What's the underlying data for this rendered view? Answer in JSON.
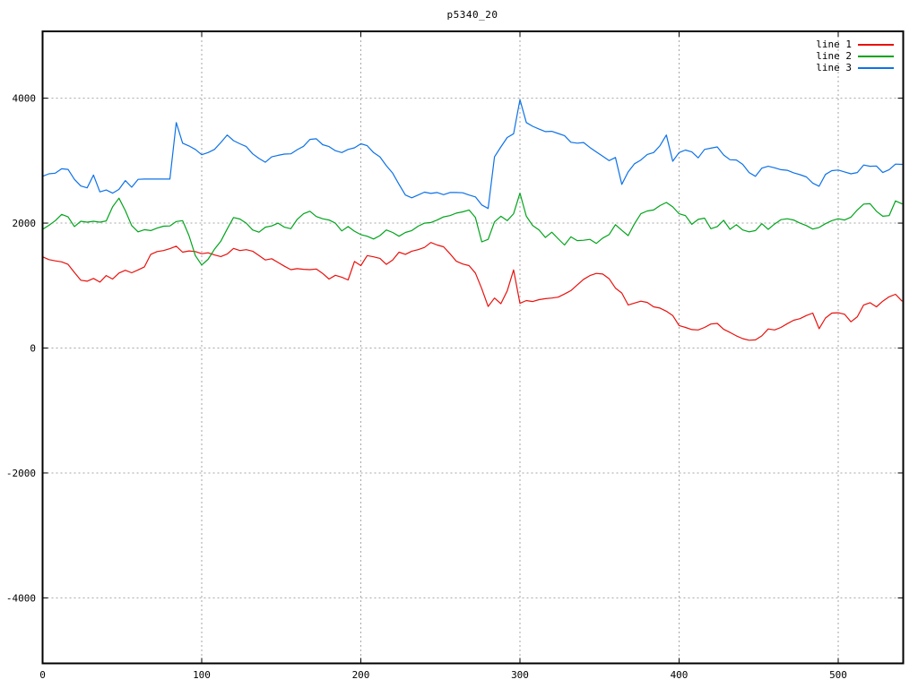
{
  "title": "p5340_20",
  "legend": {
    "position": "top-right",
    "items": [
      {
        "label": "line 1",
        "color": "#e8110d"
      },
      {
        "label": "line 2",
        "color": "#00a41b"
      },
      {
        "label": "line 3",
        "color": "#0d72e8"
      }
    ]
  },
  "axes": {
    "x": {
      "ticks": [
        0,
        100,
        200,
        300,
        400,
        500
      ],
      "range": [
        0,
        541
      ]
    },
    "y": {
      "ticks": [
        -4000,
        -2000,
        0,
        2000,
        4000
      ],
      "range": [
        -5050,
        5060
      ]
    },
    "grid": "dashed-gray"
  },
  "chart_data": {
    "type": "line",
    "title": "p5340_20",
    "xlabel": "",
    "ylabel": "",
    "x_start": 0,
    "x_step": 4,
    "xlim": [
      0,
      541
    ],
    "ylim": [
      -5050,
      5060
    ],
    "series": [
      {
        "name": "line 1",
        "color": "#e8110d",
        "values": [
          1460,
          1415,
          1395,
          1380,
          1340,
          1210,
          1085,
          1070,
          1115,
          1055,
          1160,
          1105,
          1200,
          1245,
          1205,
          1250,
          1300,
          1500,
          1545,
          1560,
          1590,
          1630,
          1535,
          1555,
          1545,
          1510,
          1525,
          1490,
          1465,
          1505,
          1595,
          1560,
          1575,
          1550,
          1480,
          1410,
          1430,
          1370,
          1310,
          1255,
          1270,
          1260,
          1255,
          1265,
          1195,
          1105,
          1165,
          1135,
          1090,
          1385,
          1320,
          1480,
          1460,
          1435,
          1340,
          1410,
          1535,
          1500,
          1550,
          1575,
          1610,
          1690,
          1650,
          1620,
          1510,
          1390,
          1345,
          1320,
          1200,
          950,
          665,
          800,
          710,
          915,
          1250,
          715,
          760,
          745,
          775,
          790,
          800,
          815,
          865,
          920,
          1010,
          1100,
          1160,
          1195,
          1185,
          1110,
          960,
          880,
          690,
          720,
          750,
          730,
          660,
          640,
          590,
          520,
          360,
          330,
          295,
          290,
          330,
          385,
          395,
          300,
          250,
          195,
          150,
          125,
          130,
          195,
          305,
          290,
          330,
          390,
          445,
          470,
          520,
          560,
          310,
          480,
          560,
          565,
          540,
          420,
          500,
          690,
          725,
          660,
          750,
          820,
          860,
          755
        ]
      },
      {
        "name": "line 2",
        "color": "#00a41b",
        "values": [
          1900,
          1965,
          2040,
          2140,
          2100,
          1945,
          2030,
          2015,
          2030,
          2015,
          2035,
          2260,
          2400,
          2200,
          1960,
          1860,
          1895,
          1880,
          1920,
          1950,
          1955,
          2025,
          2040,
          1800,
          1480,
          1330,
          1420,
          1580,
          1710,
          1905,
          2090,
          2065,
          2000,
          1890,
          1855,
          1935,
          1955,
          2000,
          1935,
          1910,
          2060,
          2150,
          2190,
          2105,
          2070,
          2050,
          2000,
          1875,
          1945,
          1870,
          1815,
          1790,
          1745,
          1800,
          1890,
          1850,
          1790,
          1850,
          1880,
          1950,
          2000,
          2010,
          2050,
          2100,
          2120,
          2160,
          2180,
          2210,
          2090,
          1700,
          1740,
          2020,
          2110,
          2040,
          2150,
          2480,
          2110,
          1960,
          1890,
          1770,
          1855,
          1750,
          1650,
          1780,
          1720,
          1725,
          1740,
          1675,
          1760,
          1815,
          1975,
          1885,
          1800,
          1990,
          2150,
          2195,
          2210,
          2280,
          2330,
          2260,
          2150,
          2120,
          1980,
          2060,
          2080,
          1910,
          1945,
          2045,
          1900,
          1975,
          1890,
          1860,
          1880,
          1990,
          1900,
          1985,
          2055,
          2070,
          2050,
          2000,
          1960,
          1905,
          1930,
          1990,
          2040,
          2070,
          2050,
          2095,
          2210,
          2305,
          2310,
          2190,
          2110,
          2120,
          2355,
          2310
        ]
      },
      {
        "name": "line 3",
        "color": "#0d72e8",
        "values": [
          2750,
          2790,
          2800,
          2870,
          2860,
          2700,
          2595,
          2565,
          2770,
          2500,
          2530,
          2480,
          2540,
          2680,
          2575,
          2700,
          2705,
          2705,
          2705,
          2705,
          2705,
          3610,
          3280,
          3235,
          3180,
          3095,
          3130,
          3180,
          3290,
          3410,
          3320,
          3270,
          3225,
          3110,
          3035,
          2975,
          3060,
          3085,
          3105,
          3110,
          3175,
          3230,
          3340,
          3350,
          3255,
          3225,
          3160,
          3130,
          3180,
          3205,
          3270,
          3240,
          3130,
          3060,
          2920,
          2800,
          2620,
          2450,
          2405,
          2450,
          2495,
          2475,
          2490,
          2455,
          2490,
          2490,
          2485,
          2450,
          2420,
          2290,
          2235,
          3060,
          3220,
          3370,
          3430,
          3975,
          3610,
          3550,
          3505,
          3465,
          3470,
          3435,
          3400,
          3295,
          3280,
          3290,
          3210,
          3140,
          3070,
          3000,
          3050,
          2620,
          2820,
          2950,
          3010,
          3100,
          3130,
          3240,
          3410,
          2990,
          3130,
          3170,
          3140,
          3045,
          3180,
          3200,
          3220,
          3090,
          3015,
          3010,
          2940,
          2810,
          2750,
          2880,
          2910,
          2885,
          2855,
          2845,
          2805,
          2775,
          2740,
          2640,
          2590,
          2780,
          2840,
          2850,
          2820,
          2790,
          2810,
          2930,
          2910,
          2915,
          2810,
          2855,
          2945,
          2940
        ]
      }
    ]
  }
}
